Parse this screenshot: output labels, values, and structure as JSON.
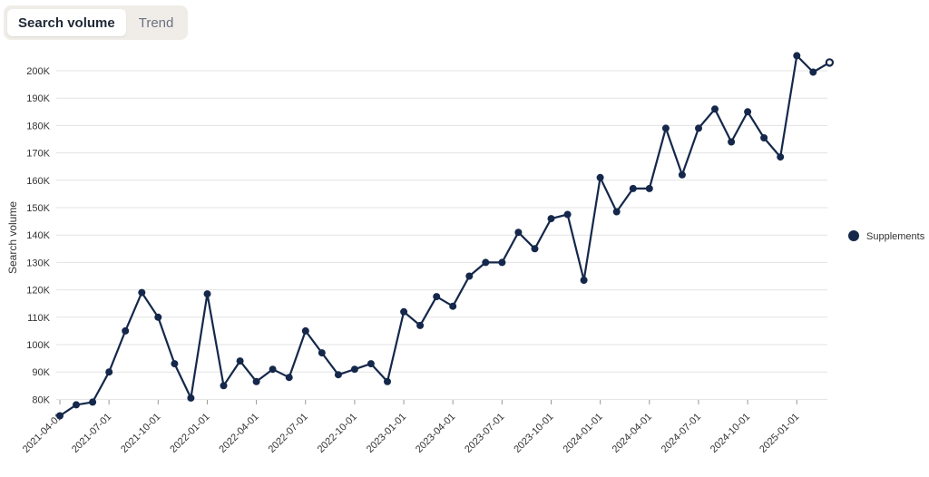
{
  "tabs": [
    {
      "label": "Search volume",
      "active": true
    },
    {
      "label": "Trend",
      "active": false
    }
  ],
  "colors": {
    "series": "#15284b",
    "grid": "#e3e3e3",
    "tab_bg": "#f0ede8"
  },
  "chart_data": {
    "type": "line",
    "ylabel": "Search volume",
    "xlabel": "",
    "ylim": [
      75000,
      205000
    ],
    "y_ticks": [
      80000,
      90000,
      100000,
      110000,
      120000,
      130000,
      140000,
      150000,
      160000,
      170000,
      180000,
      190000,
      200000
    ],
    "y_tick_labels": [
      "80K",
      "90K",
      "100K",
      "110K",
      "120K",
      "130K",
      "140K",
      "150K",
      "160K",
      "170K",
      "180K",
      "190K",
      "200K"
    ],
    "x_tick_labels": [
      "2021-04-01",
      "2021-07-01",
      "2021-10-01",
      "2022-01-01",
      "2022-04-01",
      "2022-07-01",
      "2022-10-01",
      "2023-01-01",
      "2023-04-01",
      "2023-07-01",
      "2023-10-01",
      "2024-01-01",
      "2024-04-01",
      "2024-07-01",
      "2024-10-01",
      "2025-01-01"
    ],
    "grid": true,
    "legend": "right",
    "series": [
      {
        "name": "Supplements",
        "x": [
          "2021-04-01",
          "2021-05-01",
          "2021-06-01",
          "2021-07-01",
          "2021-08-01",
          "2021-09-01",
          "2021-10-01",
          "2021-11-01",
          "2021-12-01",
          "2022-01-01",
          "2022-02-01",
          "2022-03-01",
          "2022-04-01",
          "2022-05-01",
          "2022-06-01",
          "2022-07-01",
          "2022-08-01",
          "2022-09-01",
          "2022-10-01",
          "2022-11-01",
          "2022-12-01",
          "2023-01-01",
          "2023-02-01",
          "2023-03-01",
          "2023-04-01",
          "2023-05-01",
          "2023-06-01",
          "2023-07-01",
          "2023-08-01",
          "2023-09-01",
          "2023-10-01",
          "2023-11-01",
          "2023-12-01",
          "2024-01-01",
          "2024-02-01",
          "2024-03-01",
          "2024-04-01",
          "2024-05-01",
          "2024-06-01",
          "2024-07-01",
          "2024-08-01",
          "2024-09-01",
          "2024-10-01",
          "2024-11-01",
          "2024-12-01",
          "2025-01-01",
          "2025-02-01",
          "2025-03-01"
        ],
        "values": [
          74000,
          78000,
          79000,
          90000,
          105000,
          119000,
          110000,
          93000,
          80500,
          118500,
          85000,
          94000,
          86500,
          91000,
          88000,
          105000,
          97000,
          89000,
          91000,
          93000,
          86500,
          112000,
          107000,
          117500,
          114000,
          125000,
          130000,
          130000,
          141000,
          135000,
          146000,
          147500,
          123500,
          161000,
          148500,
          157000,
          157000,
          179000,
          162000,
          179000,
          186000,
          174000,
          185000,
          175500,
          168500,
          205500,
          199500,
          203000
        ]
      }
    ]
  }
}
